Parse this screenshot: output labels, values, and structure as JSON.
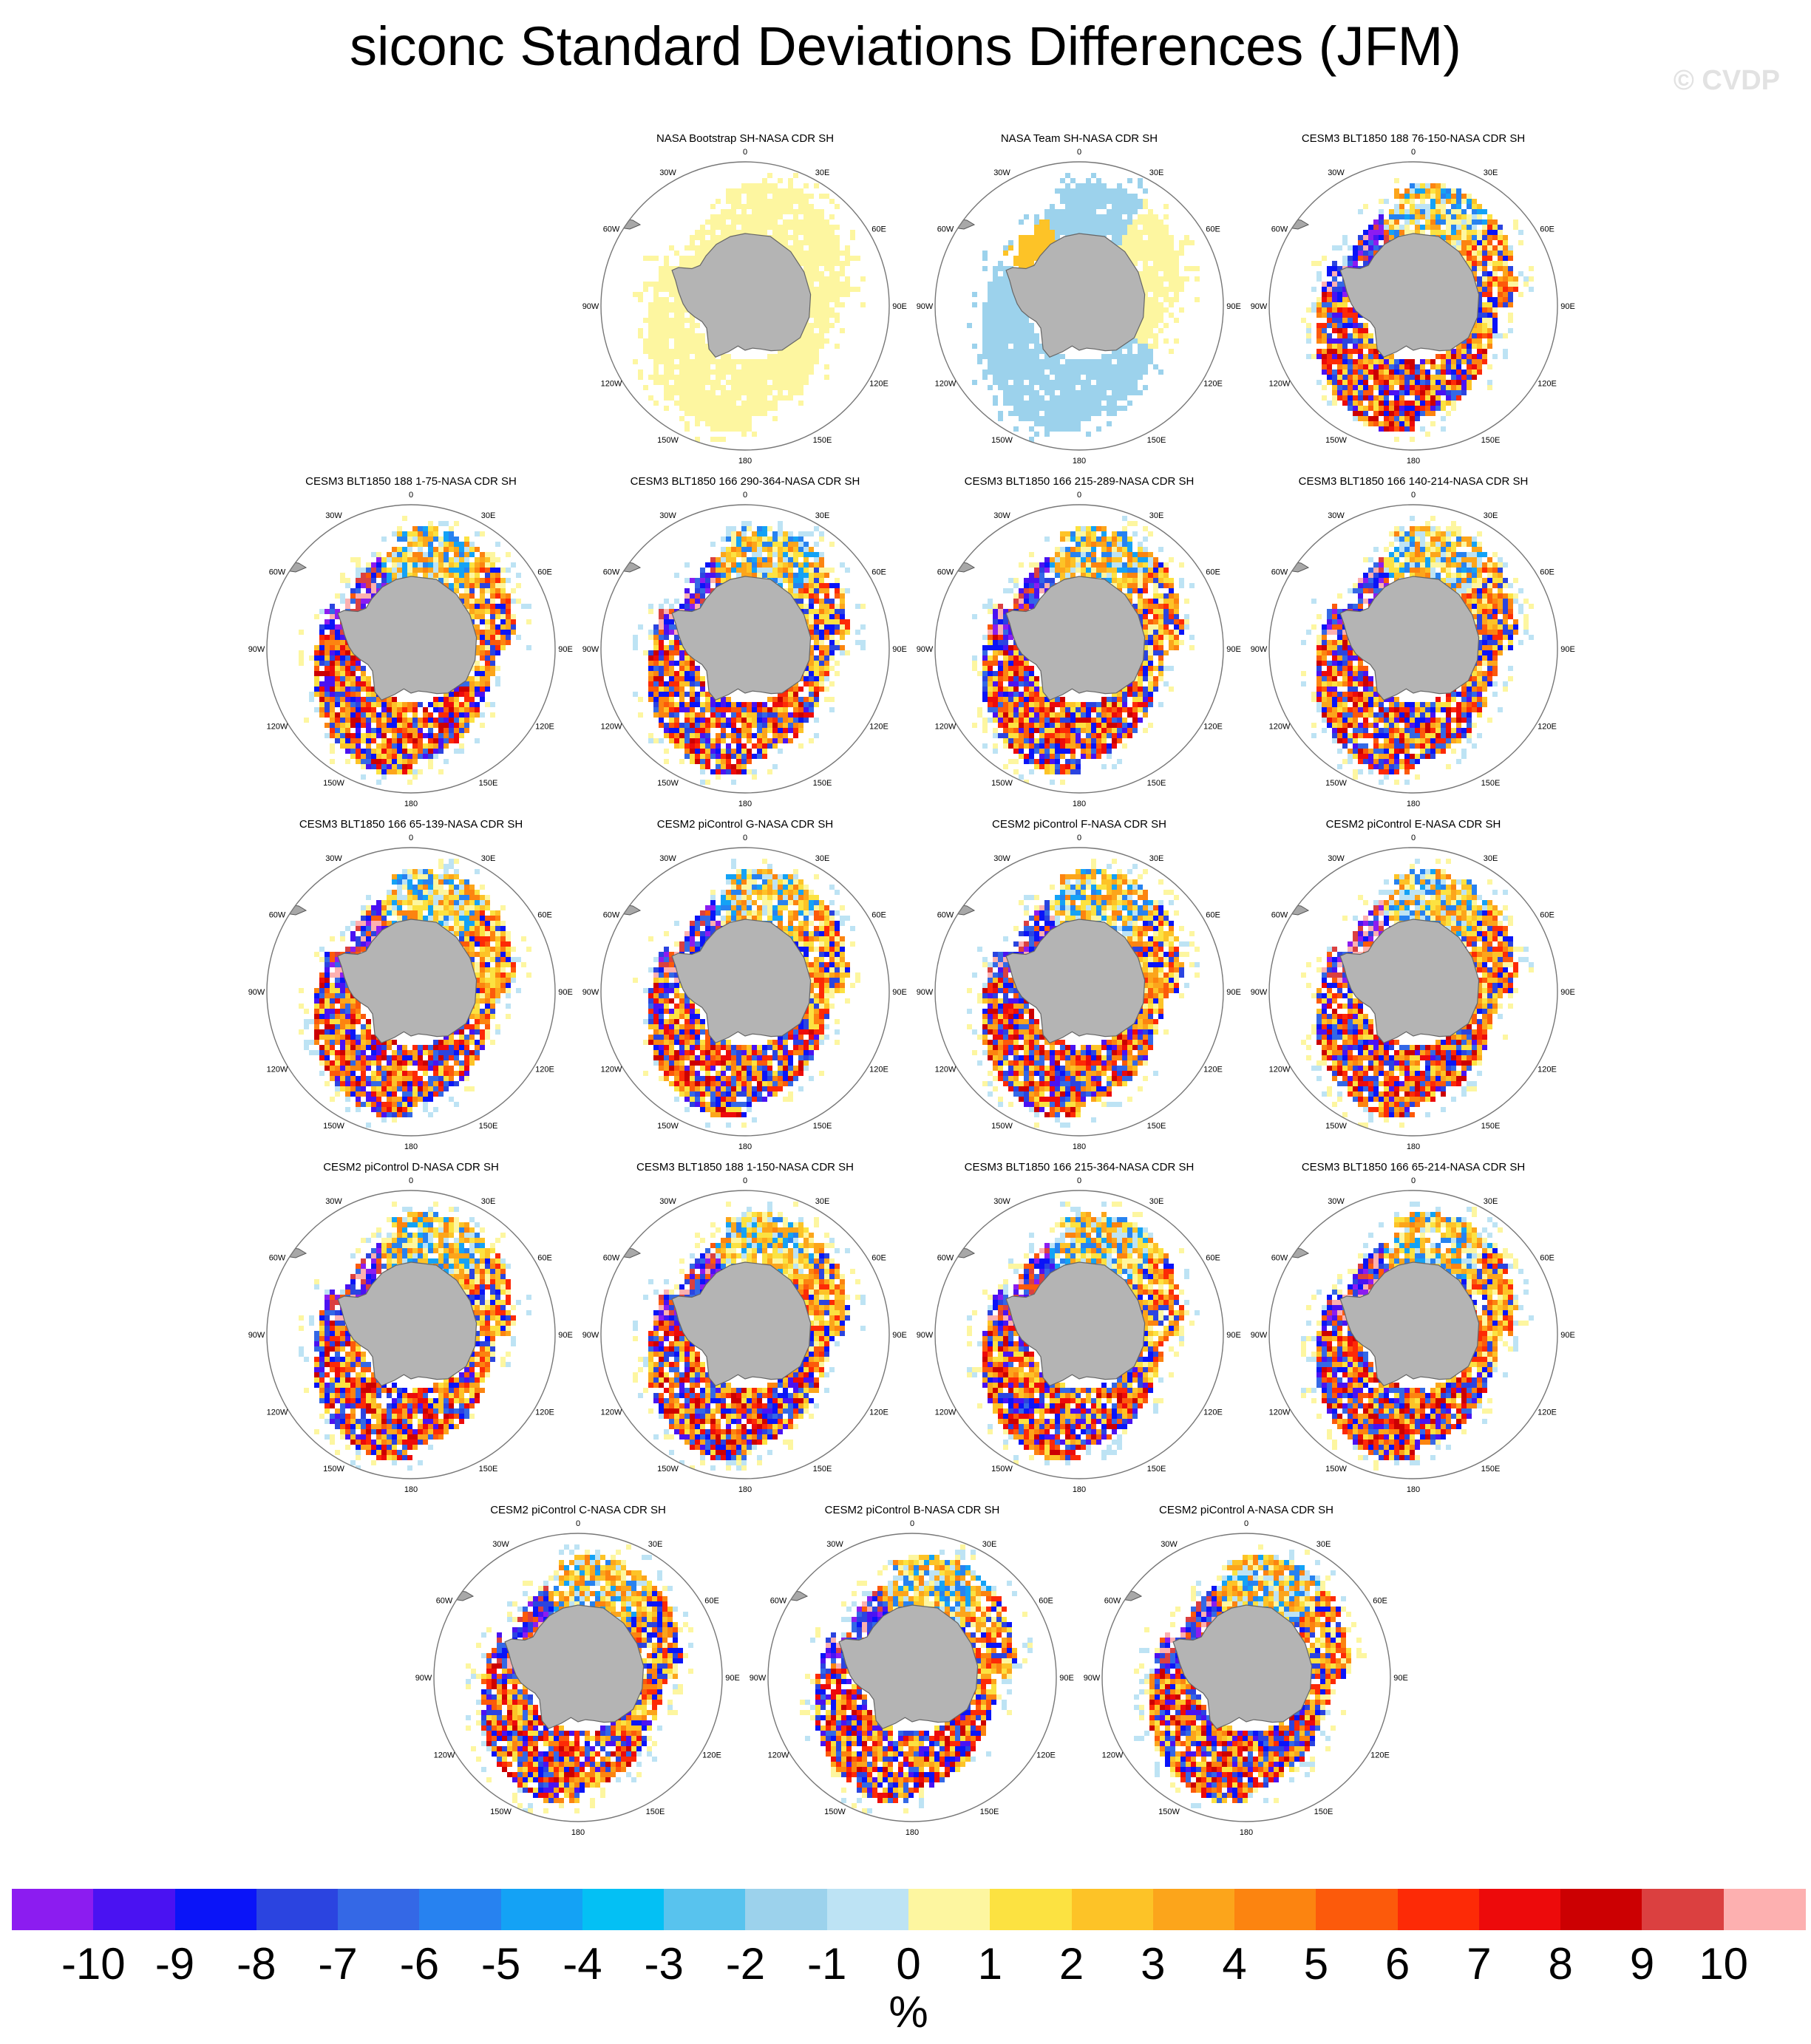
{
  "title": "siconc Standard Deviations Differences (JFM)",
  "watermark": "© CVDP",
  "lon_labels": [
    "0",
    "30E",
    "60E",
    "90E",
    "120E",
    "150E",
    "180",
    "150W",
    "120W",
    "90W",
    "60W",
    "30W"
  ],
  "colorbar": {
    "units": "%",
    "labels": [
      "-10",
      "-9",
      "-8",
      "-7",
      "-6",
      "-5",
      "-4",
      "-3",
      "-2",
      "-1",
      "0",
      "1",
      "2",
      "3",
      "4",
      "5",
      "6",
      "7",
      "8",
      "9",
      "10"
    ],
    "colors": [
      "#8c1cf0",
      "#4a12f2",
      "#0a14f8",
      "#2b44e0",
      "#3468e6",
      "#2782f0",
      "#14a2f5",
      "#04c0f4",
      "#58c3ee",
      "#9cd2ec",
      "#bde3f4",
      "#fdf6a0",
      "#fce241",
      "#fdc327",
      "#fca51b",
      "#fc8410",
      "#fc5a0b",
      "#fd2a06",
      "#ed0a0b",
      "#cc0002",
      "#db4040",
      "#fdb0b0"
    ]
  },
  "chart_data": {
    "type": "heatmap",
    "projection": "south polar stereographic",
    "panel_titles": [
      "NASA Bootstrap SH-NASA CDR SH",
      "NASA Team SH-NASA CDR SH",
      "CESM3 BLT1850 188 76-150-NASA CDR SH",
      "CESM3 BLT1850 188 1-75-NASA CDR SH",
      "CESM3 BLT1850 166 290-364-NASA CDR SH",
      "CESM3 BLT1850 166 215-289-NASA CDR SH",
      "CESM3 BLT1850 166 140-214-NASA CDR SH",
      "CESM3 BLT1850 166 65-139-NASA CDR SH",
      "CESM2 piControl G-NASA CDR SH",
      "CESM2 piControl F-NASA CDR SH",
      "CESM2 piControl E-NASA CDR SH",
      "CESM2 piControl D-NASA CDR SH",
      "CESM3 BLT1850 188 1-150-NASA CDR SH",
      "CESM3 BLT1850 166 215-364-NASA CDR SH",
      "CESM3 BLT1850 166 65-214-NASA CDR SH",
      "CESM2 piControl C-NASA CDR SH",
      "CESM2 piControl B-NASA CDR SH",
      "CESM2 piControl A-NASA CDR SH"
    ],
    "panel_styles": [
      "obs-bootstrap",
      "obs-team",
      "model",
      "model",
      "model",
      "model",
      "model",
      "model",
      "model",
      "model",
      "model",
      "model",
      "model",
      "model",
      "model",
      "model",
      "model",
      "model"
    ],
    "colorbar_range": [
      -10,
      10
    ],
    "colorbar_units": "%"
  }
}
